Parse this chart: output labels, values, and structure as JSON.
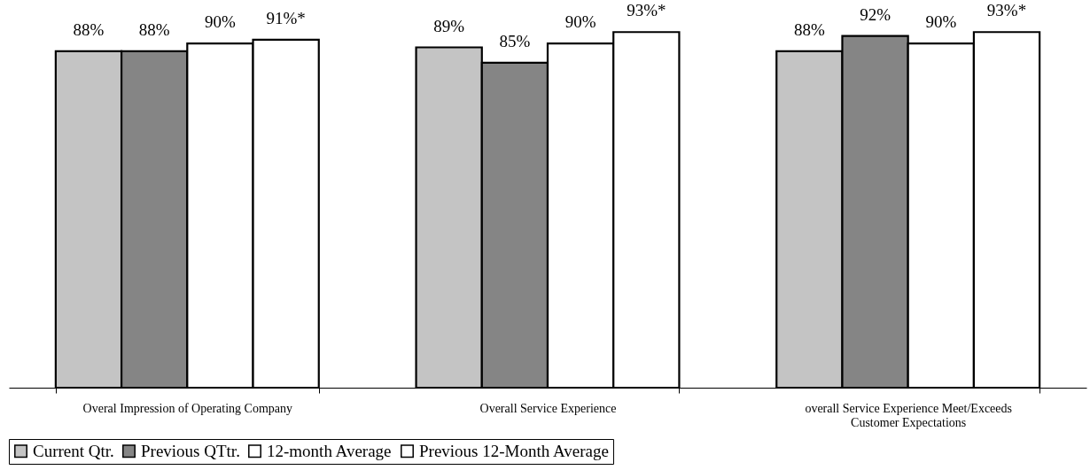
{
  "chart_data": {
    "type": "bar",
    "categories": [
      "Overal Impression of Operating Company",
      "Overall Service Experience",
      "overall Service Experience Meet/Exceeds Customer Expectations"
    ],
    "series": [
      {
        "name": "Current Qtr.",
        "color": "#c4c4c4",
        "values": [
          88,
          89,
          88
        ],
        "value_labels": [
          "88%",
          "89%",
          "88%"
        ]
      },
      {
        "name": "Previous QTtr.",
        "color": "#858585",
        "values": [
          88,
          85,
          92
        ],
        "value_labels": [
          "88%",
          "85%",
          "92%"
        ]
      },
      {
        "name": "12-month Average",
        "color": "#ffffff",
        "values": [
          90,
          90,
          90
        ],
        "value_labels": [
          "90%",
          "90%",
          "90%"
        ]
      },
      {
        "name": "Previous 12-Month Average",
        "color": "#ffffff",
        "values": [
          91,
          93,
          93
        ],
        "value_labels": [
          "91%*",
          "93%*",
          "93%*"
        ]
      }
    ],
    "legend": "bottom",
    "tick_labels": "x"
  }
}
